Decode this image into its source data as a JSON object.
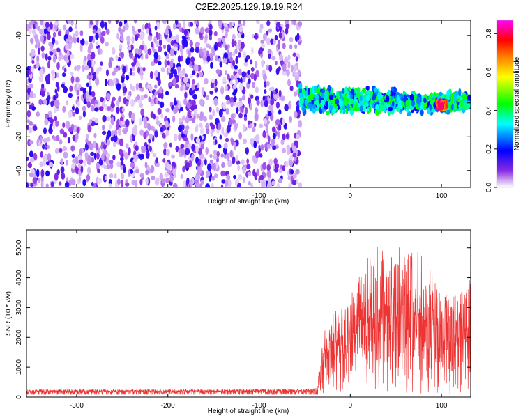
{
  "page_title": "C2E2.2025.129.19.19.R24",
  "colors": {
    "background": "#ffffff",
    "spectrum_low": "#7a3cf0",
    "snr_line": "#ee3333"
  },
  "chart_data": [
    {
      "type": "heatmap",
      "title": "C2E2.2025.129.19.19.R24",
      "xlabel": "Height of straight line (km)",
      "ylabel": "Frequency (Hz)",
      "xlim": [
        -355,
        132
      ],
      "ylim": [
        -50,
        49
      ],
      "x_ticks": [
        -300,
        -200,
        -100,
        0,
        100
      ],
      "x_tick_labels": [
        "-300",
        "-200",
        "-100",
        "0",
        "100"
      ],
      "y_ticks": [
        -40,
        -20,
        0,
        20,
        40
      ],
      "y_tick_labels": [
        "-40",
        "-20",
        "0",
        "20",
        "40"
      ],
      "regions": [
        {
          "x_range": [
            -355,
            -55
          ],
          "freq_range": [
            -50,
            49
          ],
          "amplitude": [
            0.05,
            0.2
          ]
        },
        {
          "x_range": [
            -55,
            132
          ],
          "freq_range": [
            -10,
            10
          ],
          "amplitude": [
            0.2,
            0.45
          ],
          "centre_freq": [
            2,
            0
          ]
        },
        {
          "x_range": [
            95,
            105
          ],
          "freq_range": [
            -3,
            1
          ],
          "amplitude": [
            0.6,
            0.85
          ]
        }
      ],
      "colorbar": {
        "label": "Normalized spectral amplitude",
        "range": [
          0,
          0.87
        ],
        "ticks": [
          0.0,
          0.2,
          0.4,
          0.6,
          0.8
        ],
        "tick_labels": [
          "0.0",
          "0.2",
          "0.4",
          "0.6",
          "0.8"
        ],
        "colormap": [
          "#ffffff",
          "#8a2be2",
          "#0000ff",
          "#00ffff",
          "#00ff00",
          "#ffff00",
          "#ff8000",
          "#ff0000",
          "#ff00ff"
        ]
      }
    },
    {
      "type": "line",
      "xlabel": "Height of straight line (km)",
      "ylabel": "SNR (10 * v/v)",
      "xlim": [
        -355,
        132
      ],
      "ylim": [
        0,
        5600
      ],
      "x_ticks": [
        -300,
        -200,
        -100,
        0,
        100
      ],
      "x_tick_labels": [
        "-300",
        "-200",
        "-100",
        "0",
        "100"
      ],
      "y_ticks": [
        0,
        1000,
        2000,
        3000,
        4000,
        5000
      ],
      "y_tick_labels": [
        "0",
        "1000",
        "2000",
        "3000",
        "4000",
        "5000"
      ],
      "series": [
        {
          "color": "#ee3333",
          "x": [
            -355,
            -300,
            -250,
            -200,
            -150,
            -100,
            -50,
            -36,
            -33,
            -30,
            -25,
            -20,
            -10,
            0,
            10,
            20,
            25,
            30,
            40,
            50,
            60,
            70,
            80,
            90,
            100,
            110,
            120,
            127,
            132
          ],
          "y": [
            200,
            190,
            200,
            195,
            200,
            200,
            210,
            230,
            600,
            1200,
            1450,
            1600,
            1750,
            1950,
            2200,
            2500,
            2650,
            2700,
            2750,
            2800,
            2800,
            2750,
            2650,
            2450,
            2350,
            2200,
            2300,
            2250,
            2300
          ],
          "spread_max": [
            250,
            260,
            255,
            260,
            265,
            270,
            275,
            300,
            1600,
            2200,
            2300,
            2800,
            3000,
            3400,
            4200,
            4700,
            5500,
            5000,
            4800,
            5000,
            5100,
            5000,
            4700,
            4200,
            3500,
            3400,
            3600,
            3500,
            4500
          ]
        }
      ]
    }
  ]
}
